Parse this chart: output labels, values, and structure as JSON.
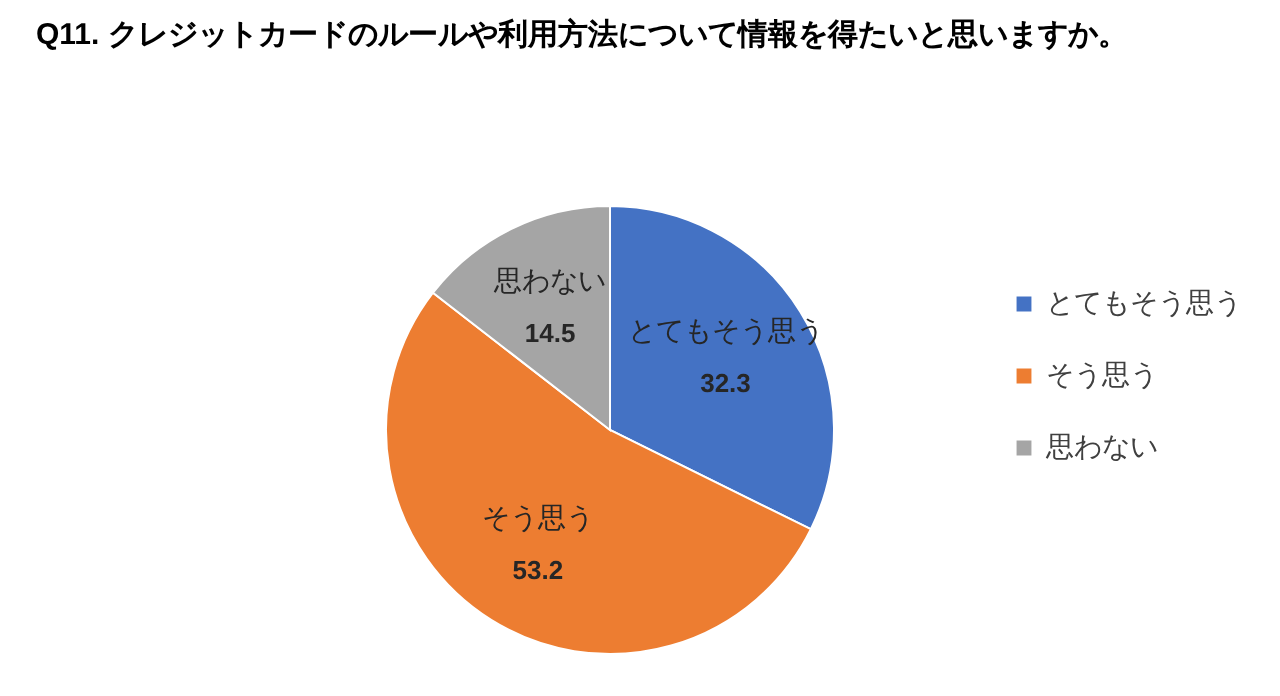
{
  "chart_data": {
    "type": "pie",
    "title": "Q11. クレジットカードのルールや利用方法について情報を得たいと思いますか。",
    "categories": [
      "とてもそう思う",
      "そう思う",
      "思わない"
    ],
    "values": [
      32.3,
      53.2,
      14.5
    ],
    "colors": [
      "#4472c4",
      "#ed7d31",
      "#a5a5a5"
    ],
    "data_labels": true,
    "legend": "right"
  }
}
